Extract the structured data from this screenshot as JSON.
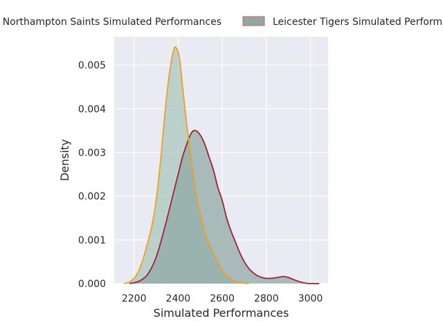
{
  "chart_data": {
    "type": "area",
    "title": "",
    "xlabel": "Simulated Performances",
    "ylabel": "Density",
    "xlim": [
      2110,
      3080
    ],
    "ylim": [
      0,
      0.00565
    ],
    "x_ticks": [
      2200,
      2400,
      2600,
      2800,
      3000
    ],
    "y_ticks": [
      0.0,
      0.001,
      0.002,
      0.003,
      0.004,
      0.005
    ],
    "grid": true,
    "legend_placement": "top-center, outside plot",
    "colors": {
      "background": "#eaeaf2",
      "grid": "#ffffff",
      "northampton_fill": "#a9c5bb",
      "northampton_line": "#f0a020",
      "leicester_fill": "#8fa8a2",
      "leicester_line": "#9b2335"
    },
    "legend": [
      {
        "label": "Northampton Saints Simulated Performances",
        "swatch_fill": "#a9c5bb",
        "swatch_edge": "#f0a020"
      },
      {
        "label": "Leicester Tigers Simulated Performances",
        "swatch_fill": "#8fa8a2",
        "swatch_edge": "#d06060"
      }
    ],
    "series": [
      {
        "name": "Northampton Saints Simulated Performances",
        "x": [
          2155,
          2180,
          2200,
          2220,
          2240,
          2260,
          2280,
          2300,
          2320,
          2340,
          2360,
          2380,
          2390,
          2400,
          2410,
          2420,
          2440,
          2460,
          2480,
          2500,
          2520,
          2540,
          2560,
          2580,
          2600,
          2620,
          2640,
          2660,
          2680,
          2700,
          2720
        ],
        "y": [
          0.0,
          4e-05,
          0.00012,
          0.00028,
          0.00055,
          0.0009,
          0.0013,
          0.0019,
          0.0028,
          0.0039,
          0.0048,
          0.00535,
          0.0054,
          0.0053,
          0.005,
          0.0045,
          0.0036,
          0.0028,
          0.0021,
          0.0016,
          0.0012,
          0.0009,
          0.0007,
          0.0005,
          0.0003,
          0.00018,
          0.0001,
          5e-05,
          2e-05,
          1e-05,
          0.0
        ]
      },
      {
        "name": "Leicester Tigers Simulated Performances",
        "x": [
          2180,
          2220,
          2260,
          2300,
          2340,
          2380,
          2400,
          2420,
          2440,
          2460,
          2480,
          2500,
          2520,
          2540,
          2560,
          2580,
          2600,
          2620,
          2640,
          2660,
          2680,
          2700,
          2720,
          2740,
          2760,
          2780,
          2800,
          2820,
          2840,
          2860,
          2880,
          2900,
          2920,
          2940,
          2960,
          2980,
          3000,
          3040
        ],
        "y": [
          0.0,
          5e-05,
          0.0002,
          0.0006,
          0.0013,
          0.0021,
          0.0025,
          0.0029,
          0.0032,
          0.00345,
          0.0035,
          0.0034,
          0.0032,
          0.0029,
          0.0026,
          0.0022,
          0.0019,
          0.0015,
          0.0012,
          0.00095,
          0.0007,
          0.0005,
          0.00035,
          0.00025,
          0.00018,
          0.00014,
          0.00012,
          0.00012,
          0.00013,
          0.00015,
          0.00016,
          0.00014,
          0.0001,
          6e-05,
          3e-05,
          1e-05,
          0.0,
          0.0
        ]
      }
    ]
  }
}
